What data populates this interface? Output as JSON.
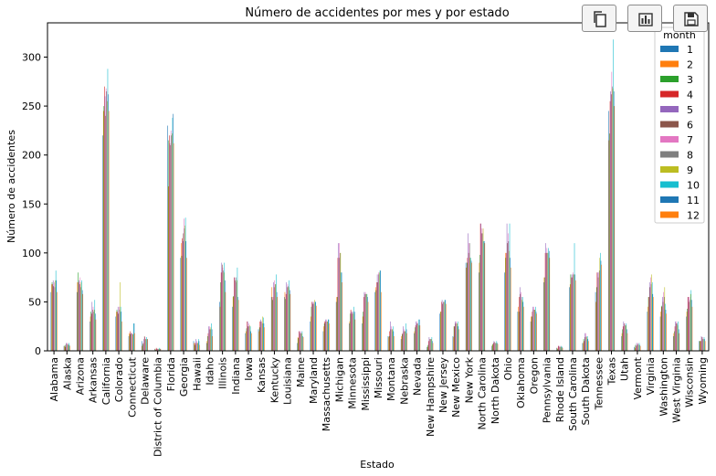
{
  "toolbar": {
    "buttons": [
      {
        "name": "copy-button",
        "icon": "copy-icon"
      },
      {
        "name": "chart-button",
        "icon": "bar-chart-icon"
      },
      {
        "name": "save-button",
        "icon": "save-icon"
      }
    ]
  },
  "chart_data": {
    "type": "bar",
    "title": "Número de accidentes por mes y por estado",
    "xlabel": "Estado",
    "ylabel": "Número de accidentes",
    "ylim": [
      0,
      335
    ],
    "yticks": [
      0,
      50,
      100,
      150,
      200,
      250,
      300
    ],
    "grid": false,
    "legend_title": "month",
    "legend_position": "top-right",
    "colors": [
      "#1f77b4",
      "#ff7f0e",
      "#2ca02c",
      "#d62728",
      "#9467bd",
      "#8c564b",
      "#e377c2",
      "#7f7f7f",
      "#bcbd22",
      "#17becf",
      "#1f77b4",
      "#ff7f0e"
    ],
    "categories": [
      "Alabama",
      "Alaska",
      "Arizona",
      "Arkansas",
      "California",
      "Colorado",
      "Connecticut",
      "Delaware",
      "District of Columbia",
      "Florida",
      "Georgia",
      "Hawaii",
      "Idaho",
      "Illinois",
      "Indiana",
      "Iowa",
      "Kansas",
      "Kentucky",
      "Louisiana",
      "Maine",
      "Maryland",
      "Massachusetts",
      "Michigan",
      "Minnesota",
      "Mississippi",
      "Missouri",
      "Montana",
      "Nebraska",
      "Nevada",
      "New Hampshire",
      "New Jersey",
      "New Mexico",
      "New York",
      "North Carolina",
      "North Dakota",
      "Ohio",
      "Oklahoma",
      "Oregon",
      "Pennsylvania",
      "Rhode Island",
      "South Carolina",
      "South Dakota",
      "Tennessee",
      "Texas",
      "Utah",
      "Vermont",
      "Virginia",
      "Washington",
      "West Virginia",
      "Wisconsin",
      "Wyoming"
    ],
    "series": [
      {
        "name": "1",
        "values": [
          60,
          5,
          60,
          30,
          220,
          35,
          15,
          10,
          2,
          230,
          95,
          10,
          8,
          50,
          45,
          18,
          22,
          55,
          55,
          8,
          30,
          20,
          50,
          28,
          28,
          60,
          15,
          12,
          18,
          4,
          38,
          15,
          90,
          80,
          5,
          80,
          40,
          30,
          70,
          3,
          65,
          8,
          60,
          245,
          15,
          4,
          40,
          35,
          15,
          35,
          10
        ]
      },
      {
        "name": "2",
        "values": [
          68,
          5,
          70,
          35,
          245,
          40,
          18,
          5,
          2,
          168,
          110,
          8,
          10,
          45,
          55,
          20,
          20,
          65,
          60,
          14,
          35,
          25,
          55,
          30,
          35,
          65,
          14,
          15,
          20,
          4,
          40,
          14,
          85,
          90,
          6,
          100,
          45,
          35,
          75,
          3,
          68,
          8,
          50,
          215,
          18,
          3,
          45,
          40,
          18,
          40,
          10
        ]
      },
      {
        "name": "3",
        "values": [
          70,
          6,
          80,
          40,
          250,
          42,
          17,
          7,
          1,
          215,
          97,
          6,
          15,
          70,
          56,
          23,
          24,
          52,
          53,
          13,
          45,
          28,
          55,
          38,
          40,
          62,
          15,
          17,
          24,
          6,
          40,
          25,
          90,
          98,
          7,
          95,
          40,
          35,
          75,
          2,
          78,
          12,
          65,
          222,
          22,
          6,
          55,
          46,
          20,
          43,
          10
        ]
      },
      {
        "name": "4",
        "values": [
          68,
          4,
          70,
          38,
          270,
          40,
          20,
          8,
          3,
          220,
          115,
          8,
          18,
          80,
          75,
          30,
          30,
          55,
          58,
          20,
          50,
          30,
          95,
          42,
          55,
          70,
          20,
          18,
          26,
          10,
          50,
          25,
          95,
          130,
          8,
          100,
          55,
          40,
          100,
          5,
          75,
          10,
          80,
          255,
          25,
          5,
          55,
          45,
          25,
          55,
          10
        ]
      },
      {
        "name": "5",
        "values": [
          72,
          8,
          72,
          50,
          260,
          45,
          18,
          12,
          2,
          212,
          112,
          12,
          25,
          90,
          75,
          30,
          32,
          70,
          70,
          20,
          50,
          32,
          110,
          40,
          60,
          78,
          30,
          25,
          30,
          14,
          52,
          30,
          120,
          130,
          10,
          130,
          65,
          45,
          110,
          5,
          78,
          18,
          80,
          265,
          30,
          8,
          70,
          55,
          30,
          55,
          15
        ]
      },
      {
        "name": "6",
        "values": [
          66,
          7,
          68,
          42,
          240,
          38,
          18,
          15,
          2,
          210,
          120,
          8,
          22,
          88,
          72,
          25,
          30,
          65,
          65,
          18,
          48,
          30,
          95,
          38,
          58,
          70,
          22,
          20,
          28,
          12,
          48,
          28,
          100,
          120,
          9,
          110,
          58,
          42,
          100,
          4,
          75,
          14,
          75,
          262,
          28,
          6,
          65,
          50,
          28,
          50,
          14
        ]
      },
      {
        "name": "7",
        "values": [
          70,
          8,
          75,
          45,
          268,
          45,
          18,
          14,
          2,
          225,
          135,
          10,
          25,
          85,
          70,
          28,
          30,
          72,
          68,
          20,
          50,
          32,
          110,
          40,
          60,
          80,
          25,
          22,
          30,
          12,
          50,
          30,
          110,
          125,
          8,
          120,
          60,
          45,
          105,
          5,
          80,
          18,
          80,
          285,
          28,
          8,
          75,
          60,
          30,
          55,
          14
        ]
      },
      {
        "name": "8",
        "values": [
          65,
          7,
          65,
          40,
          265,
          42,
          17,
          12,
          2,
          220,
          125,
          8,
          22,
          82,
          75,
          25,
          28,
          68,
          66,
          18,
          48,
          30,
          100,
          40,
          58,
          78,
          22,
          20,
          28,
          12,
          50,
          28,
          110,
          120,
          8,
          112,
          55,
          42,
          100,
          4,
          78,
          15,
          82,
          270,
          26,
          7,
          68,
          55,
          28,
          52,
          12
        ]
      },
      {
        "name": "9",
        "values": [
          72,
          6,
          70,
          42,
          255,
          70,
          17,
          12,
          2,
          222,
          128,
          8,
          24,
          80,
          72,
          26,
          35,
          68,
          65,
          18,
          52,
          30,
          100,
          38,
          58,
          80,
          22,
          20,
          26,
          12,
          50,
          28,
          95,
          125,
          8,
          102,
          52,
          42,
          100,
          4,
          78,
          14,
          95,
          268,
          26,
          6,
          78,
          65,
          26,
          58,
          12
        ]
      },
      {
        "name": "10",
        "values": [
          82,
          8,
          72,
          52,
          288,
          45,
          28,
          14,
          3,
          238,
          136,
          12,
          28,
          90,
          85,
          25,
          34,
          78,
          72,
          20,
          50,
          32,
          80,
          45,
          58,
          82,
          25,
          28,
          32,
          14,
          52,
          30,
          95,
          112,
          10,
          130,
          55,
          45,
          105,
          5,
          110,
          15,
          100,
          318,
          28,
          8,
          70,
          48,
          30,
          62,
          14
        ]
      },
      {
        "name": "11",
        "values": [
          72,
          6,
          62,
          38,
          262,
          40,
          28,
          12,
          2,
          242,
          112,
          10,
          22,
          72,
          55,
          20,
          28,
          60,
          62,
          15,
          50,
          32,
          80,
          40,
          55,
          82,
          20,
          22,
          32,
          10,
          52,
          25,
          92,
          112,
          8,
          95,
          50,
          40,
          102,
          4,
          78,
          12,
          92,
          265,
          22,
          6,
          58,
          42,
          22,
          52,
          12
        ]
      },
      {
        "name": "12",
        "values": [
          60,
          5,
          58,
          32,
          245,
          30,
          18,
          12,
          2,
          212,
          95,
          6,
          15,
          60,
          52,
          18,
          24,
          55,
          58,
          14,
          46,
          28,
          70,
          32,
          50,
          60,
          15,
          18,
          26,
          8,
          48,
          22,
          90,
          110,
          7,
          85,
          45,
          38,
          95,
          3,
          72,
          10,
          88,
          250,
          18,
          5,
          55,
          38,
          18,
          45,
          10
        ]
      }
    ]
  }
}
